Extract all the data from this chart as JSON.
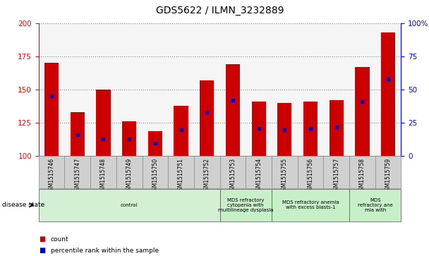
{
  "title": "GDS5622 / ILMN_3232889",
  "samples": [
    "GSM1515746",
    "GSM1515747",
    "GSM1515748",
    "GSM1515749",
    "GSM1515750",
    "GSM1515751",
    "GSM1515752",
    "GSM1515753",
    "GSM1515754",
    "GSM1515755",
    "GSM1515756",
    "GSM1515757",
    "GSM1515758",
    "GSM1515759"
  ],
  "counts": [
    170,
    133,
    150,
    126,
    119,
    138,
    157,
    169,
    141,
    140,
    141,
    142,
    167,
    193
  ],
  "percentile_positions": [
    145,
    116,
    113,
    113,
    110,
    120,
    133,
    142,
    121,
    120,
    121,
    122,
    141,
    158
  ],
  "ylim": [
    100,
    200
  ],
  "yticks_left": [
    100,
    125,
    150,
    175,
    200
  ],
  "yticks_right_vals": [
    100,
    125,
    150,
    175,
    200
  ],
  "yticks_right_labels": [
    "0",
    "25",
    "50",
    "75",
    "100%"
  ],
  "bar_color": "#cc0000",
  "dot_color": "#0000cc",
  "plot_bg_color": "#f5f5f5",
  "tick_area_bg": "#d8d8d8",
  "disease_groups": [
    {
      "label": "control",
      "start": 0,
      "end": 7,
      "color": "#d4f0d4"
    },
    {
      "label": "MDS refractory\ncytopenia with\nmultilineage dysplasia",
      "start": 7,
      "end": 9,
      "color": "#c8f0c8"
    },
    {
      "label": "MDS refractory anemia\nwith excess blasts-1",
      "start": 9,
      "end": 12,
      "color": "#c8f0c8"
    },
    {
      "label": "MDS\nrefractory ane\nmia with",
      "start": 12,
      "end": 14,
      "color": "#c8f0c8"
    }
  ],
  "disease_state_label": "disease state",
  "legend_count_label": "count",
  "legend_pct_label": "percentile rank within the sample"
}
